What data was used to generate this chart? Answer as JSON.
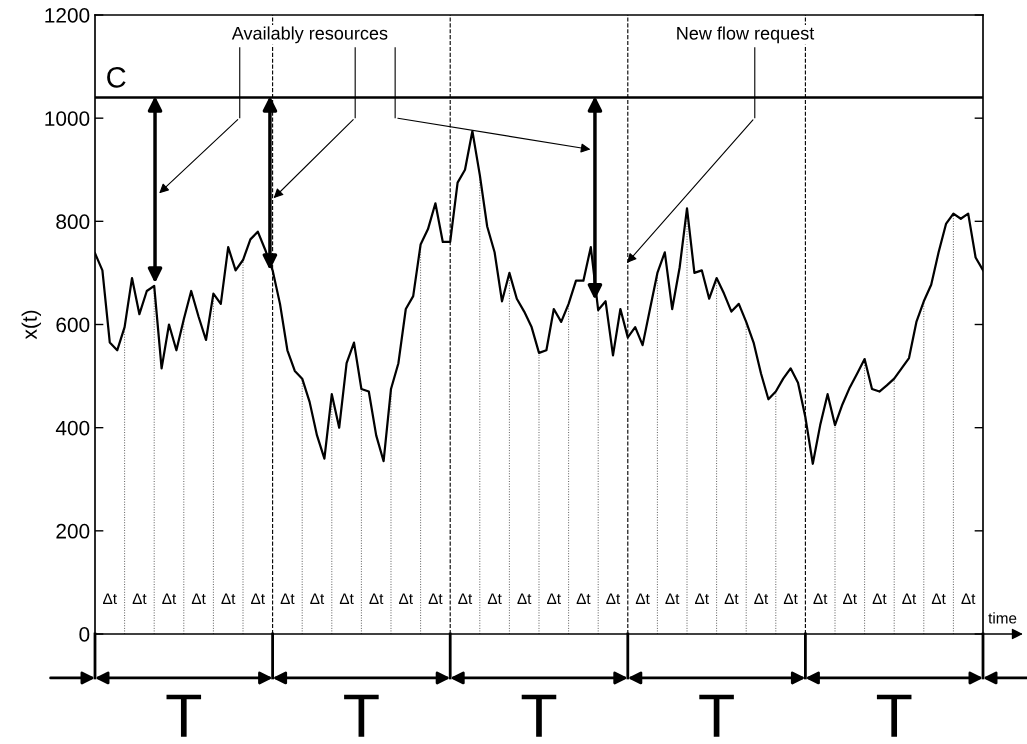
{
  "chart_data": {
    "type": "line",
    "ylabel": "x(t)",
    "xlabel": "time",
    "categories": [
      null,
      null,
      null,
      null,
      null,
      null,
      null,
      null,
      null,
      null,
      null,
      null,
      null,
      null,
      null,
      null,
      null,
      null,
      null,
      null,
      null,
      null,
      null,
      null,
      null,
      null,
      null,
      null,
      null,
      null,
      null,
      null,
      null,
      null,
      null,
      null,
      null,
      null,
      null,
      null,
      null,
      null,
      null,
      null,
      null,
      null,
      null,
      null,
      null,
      null,
      null,
      null,
      null,
      null,
      null,
      null,
      null,
      null,
      null,
      null,
      null,
      null,
      null,
      null,
      null,
      null,
      null,
      null,
      null,
      null,
      null,
      null,
      null,
      null,
      null,
      null,
      null,
      null,
      null,
      null,
      null,
      null,
      null,
      null,
      null,
      null,
      null,
      null,
      null,
      null,
      null,
      null,
      null,
      null,
      null,
      null,
      null,
      null,
      null,
      null,
      null,
      null,
      null,
      null,
      null,
      null,
      null,
      null,
      null,
      null,
      null,
      null,
      null,
      null,
      null,
      null,
      null,
      null,
      null,
      null,
      null
    ],
    "series": [
      {
        "color": "#000000",
        "values": [
          738,
          705,
          565,
          550,
          595,
          690,
          620,
          665,
          675,
          515,
          600,
          550,
          610,
          665,
          615,
          570,
          660,
          640,
          750,
          705,
          725,
          765,
          780,
          745,
          705,
          640,
          550,
          510,
          495,
          450,
          385,
          340,
          465,
          400,
          525,
          565,
          475,
          470,
          385,
          335,
          475,
          525,
          630,
          655,
          755,
          785,
          835,
          760,
          760,
          875,
          900,
          975,
          890,
          790,
          740,
          645,
          700,
          650,
          625,
          595,
          545,
          550,
          630,
          605,
          640,
          685,
          685,
          750,
          628,
          645,
          540,
          630,
          575,
          595,
          560,
          630,
          700,
          740,
          630,
          710,
          825,
          700,
          705,
          650,
          690,
          660,
          625,
          640,
          605,
          565,
          505,
          455,
          470,
          495,
          515,
          487,
          420,
          330,
          405,
          465,
          405,
          445,
          478,
          505,
          533,
          475,
          470,
          482,
          495,
          515,
          535,
          605,
          645,
          677,
          740,
          795,
          815,
          805,
          815,
          730,
          705
        ]
      }
    ],
    "ylim": [
      0,
      1200
    ],
    "yticks": [
      0,
      200,
      400,
      600,
      800,
      1000,
      1200
    ],
    "ref_lines": [
      {
        "axis": "y",
        "value": 1040,
        "label": "C",
        "color": "#000000",
        "line_style": "solid"
      }
    ],
    "annotations": [
      "Availably resources",
      "New flow request",
      "T",
      "T",
      "T",
      "T",
      "T",
      "Δt",
      "Δt",
      "Δt",
      "Δt",
      "Δt",
      "Δt",
      "Δt",
      "Δt",
      "Δt",
      "Δt",
      "Δt",
      "Δt",
      "Δt",
      "Δt",
      "Δt",
      "Δt",
      "Δt",
      "Δt",
      "Δt",
      "Δt",
      "Δt",
      "Δt",
      "Δt",
      "Δt",
      "Δt",
      "Δt",
      "Δt",
      "Δt",
      "Δt",
      "Δt"
    ],
    "grid": "x",
    "legend": false,
    "marker": "none",
    "line_style": "solid"
  }
}
